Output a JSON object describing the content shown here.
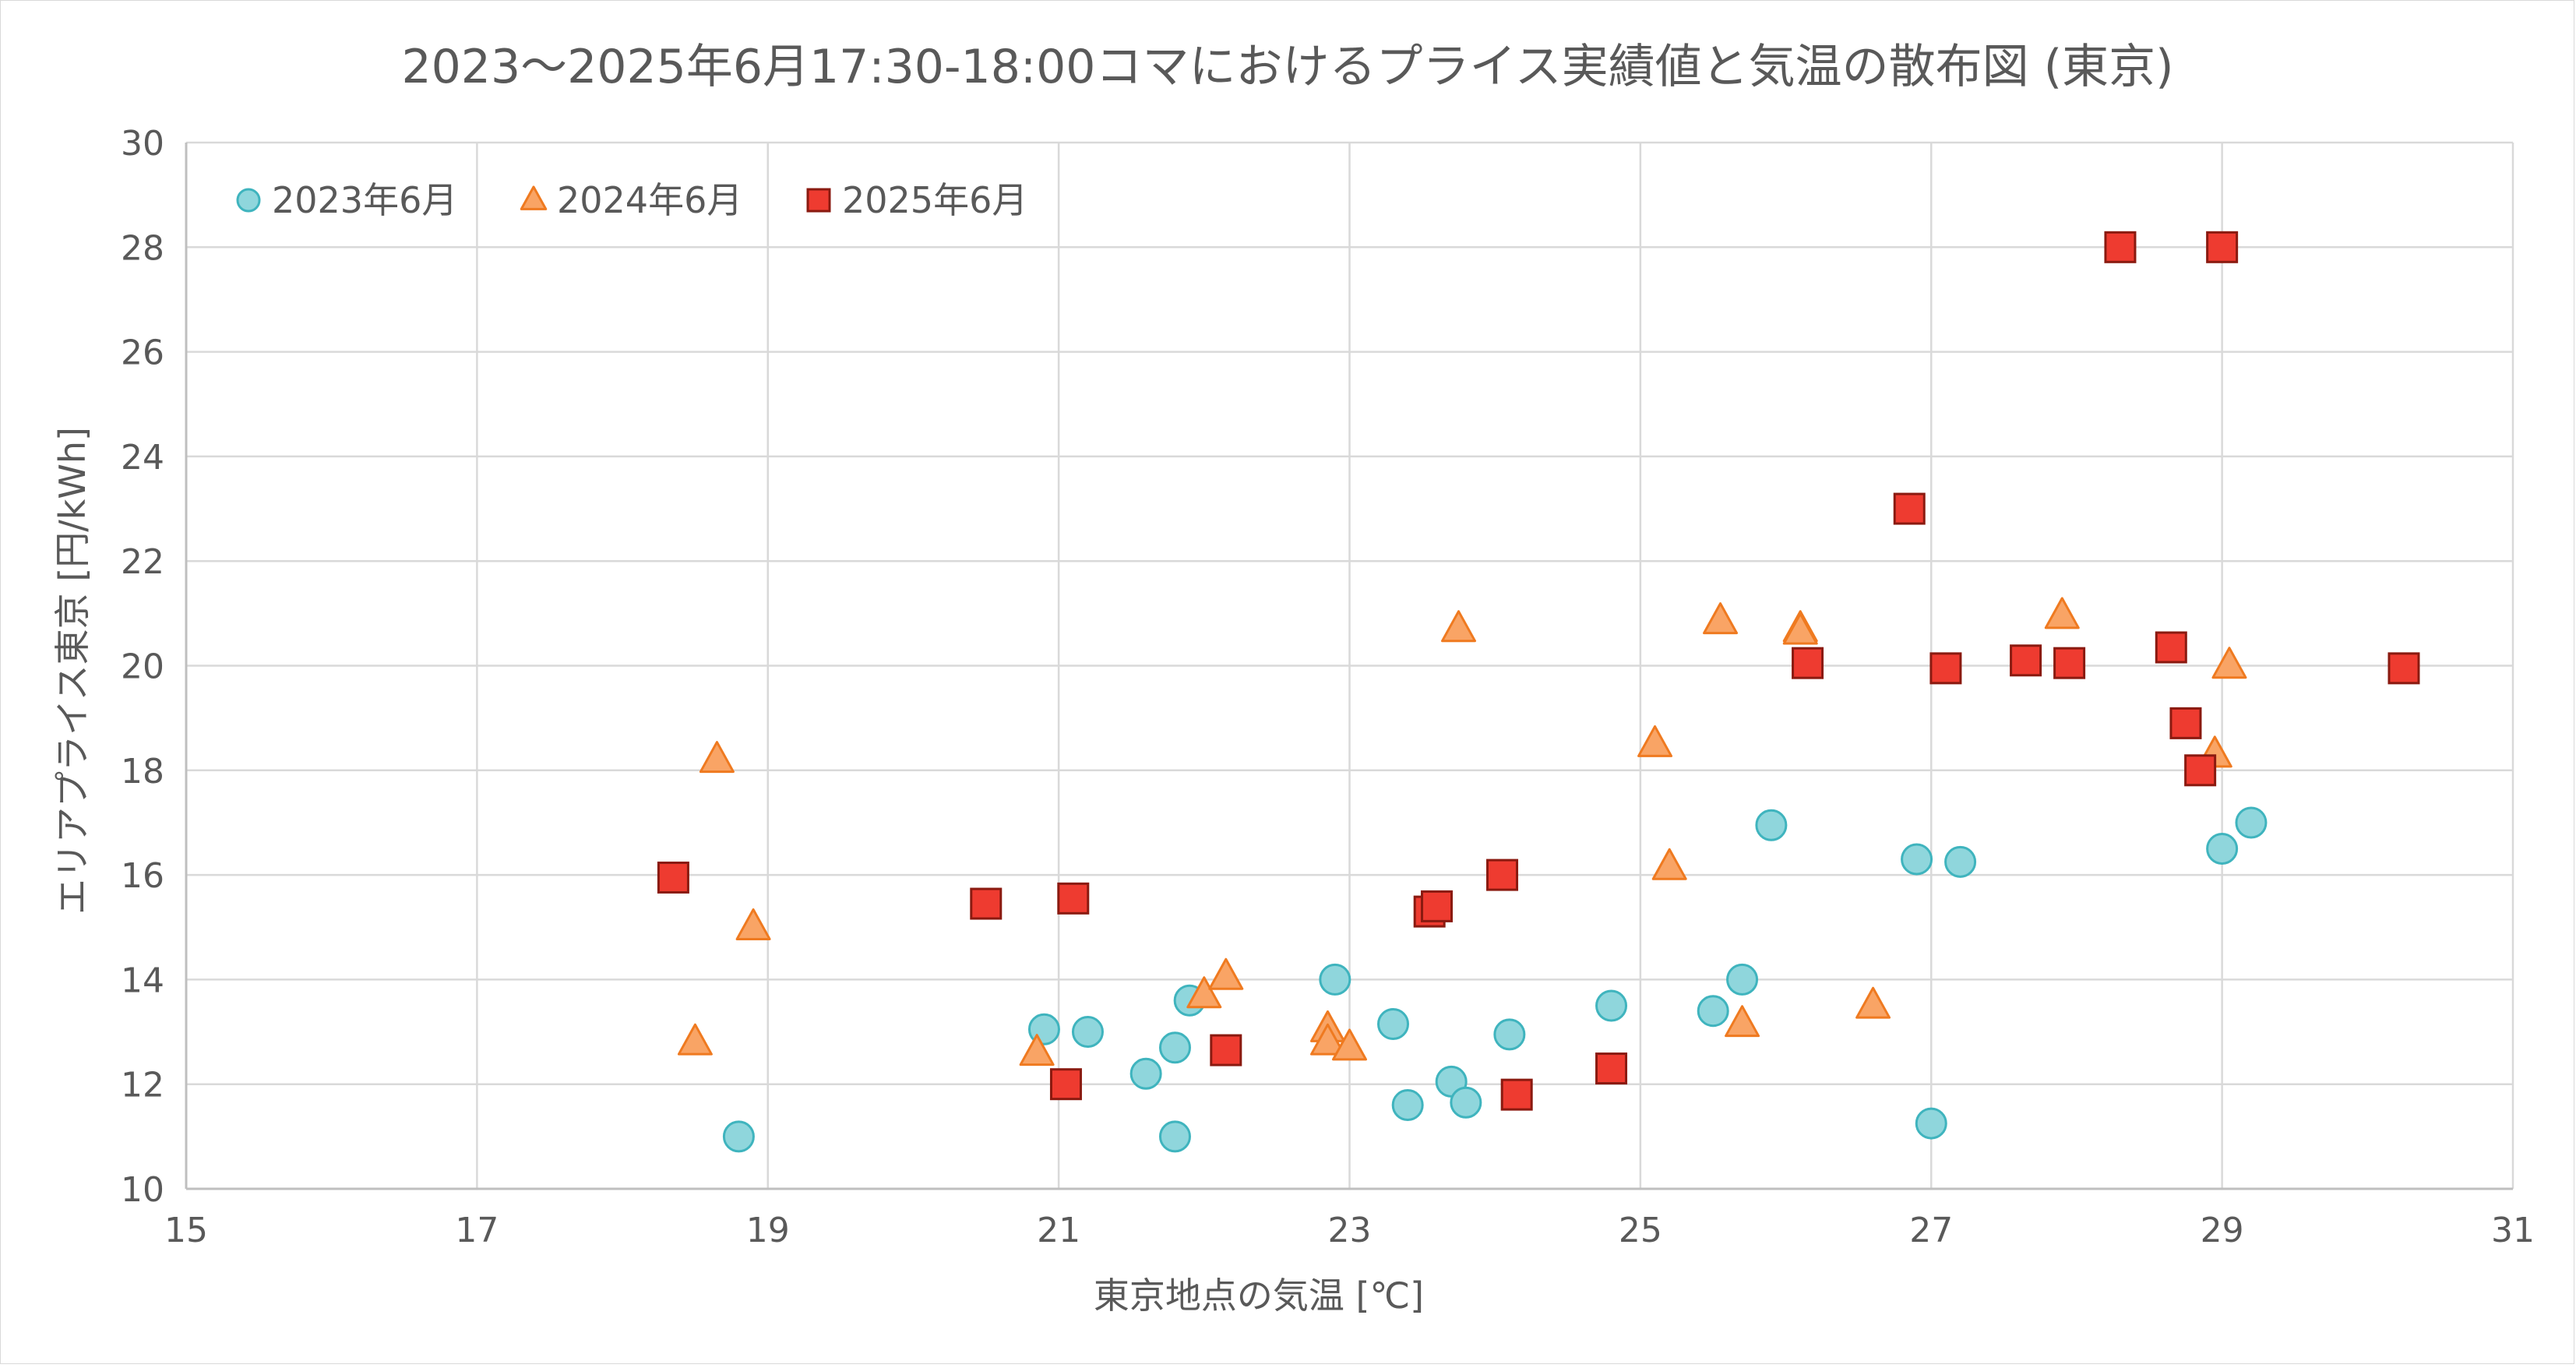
{
  "chart_data": {
    "type": "scatter",
    "title": "2023～2025年6月17:30-18:00コマにおけるプライス実績値と気温の散布図 (東京)",
    "xlabel": "東京地点の気温 [℃]",
    "ylabel": "エリアプライス東京 [円/kWh]",
    "xlim": [
      15,
      31
    ],
    "ylim": [
      10,
      30
    ],
    "xticks": [
      15,
      17,
      19,
      21,
      23,
      25,
      27,
      29,
      31
    ],
    "yticks": [
      10,
      12,
      14,
      16,
      18,
      20,
      22,
      24,
      26,
      28,
      30
    ],
    "grid": true,
    "legend": "top-left",
    "series": [
      {
        "name": "2023年6月",
        "marker": "circle",
        "color": "#8fd6dc",
        "edge": "#3fb4be",
        "points": [
          [
            18.8,
            11.0
          ],
          [
            20.9,
            13.05
          ],
          [
            21.2,
            13.0
          ],
          [
            21.6,
            12.2
          ],
          [
            21.8,
            12.7
          ],
          [
            21.8,
            11.0
          ],
          [
            21.9,
            13.6
          ],
          [
            22.9,
            14.0
          ],
          [
            23.3,
            13.15
          ],
          [
            23.4,
            11.6
          ],
          [
            23.7,
            12.05
          ],
          [
            23.8,
            11.65
          ],
          [
            24.1,
            12.95
          ],
          [
            24.8,
            13.5
          ],
          [
            25.5,
            13.4
          ],
          [
            25.7,
            14.0
          ],
          [
            25.9,
            16.95
          ],
          [
            26.9,
            16.3
          ],
          [
            27.0,
            11.25
          ],
          [
            27.2,
            16.25
          ],
          [
            29.0,
            16.5
          ],
          [
            29.2,
            17.0
          ]
        ]
      },
      {
        "name": "2024年6月",
        "marker": "triangle",
        "color": "#f9a465",
        "edge": "#ef7a20",
        "points": [
          [
            18.5,
            12.8
          ],
          [
            18.65,
            18.2
          ],
          [
            18.9,
            15.0
          ],
          [
            20.85,
            12.6
          ],
          [
            22.0,
            13.7
          ],
          [
            22.15,
            14.05
          ],
          [
            22.85,
            13.05
          ],
          [
            22.85,
            12.8
          ],
          [
            23.0,
            12.7
          ],
          [
            23.75,
            20.7
          ],
          [
            25.1,
            18.5
          ],
          [
            25.2,
            16.15
          ],
          [
            25.55,
            20.85
          ],
          [
            25.7,
            13.15
          ],
          [
            26.1,
            20.7
          ],
          [
            26.1,
            20.65
          ],
          [
            26.6,
            13.5
          ],
          [
            27.9,
            20.95
          ],
          [
            28.95,
            18.3
          ],
          [
            29.05,
            20.0
          ]
        ]
      },
      {
        "name": "2025年6月",
        "marker": "square",
        "color": "#ee3b30",
        "edge": "#8a1a10",
        "points": [
          [
            18.35,
            15.95
          ],
          [
            20.5,
            15.45
          ],
          [
            21.05,
            12.0
          ],
          [
            21.1,
            15.55
          ],
          [
            22.15,
            12.65
          ],
          [
            23.55,
            15.3
          ],
          [
            23.6,
            15.4
          ],
          [
            24.05,
            16.0
          ],
          [
            24.15,
            11.8
          ],
          [
            24.8,
            12.3
          ],
          [
            26.15,
            20.05
          ],
          [
            26.85,
            23.0
          ],
          [
            27.1,
            19.95
          ],
          [
            27.65,
            20.1
          ],
          [
            27.95,
            20.05
          ],
          [
            28.3,
            28.0
          ],
          [
            28.65,
            20.35
          ],
          [
            28.75,
            18.9
          ],
          [
            28.85,
            18.0
          ],
          [
            29.0,
            28.0
          ],
          [
            30.25,
            19.95
          ]
        ]
      }
    ]
  }
}
